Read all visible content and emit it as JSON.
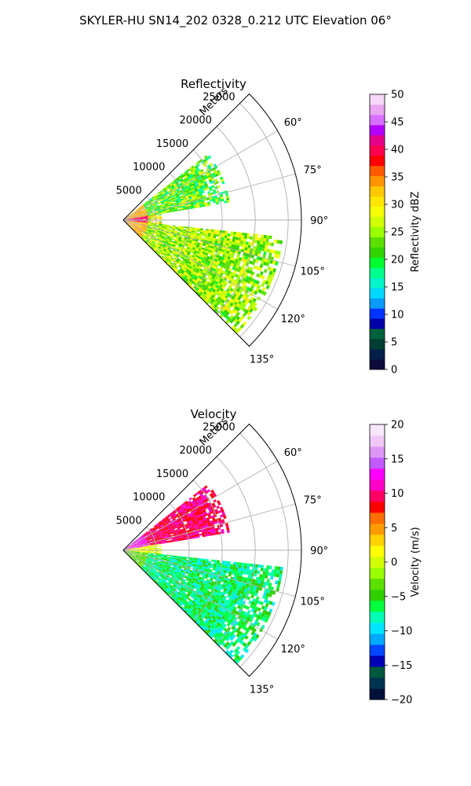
{
  "suptitle": "SKYLER-HU  SN14_202  0328_0.212 UTC Elevation 06°",
  "chart_data": [
    {
      "type": "heatmap",
      "subtype": "polar-sector",
      "title": "Reflectivity",
      "radial_axis_label": "Meters",
      "radial_ticks": [
        5000,
        10000,
        15000,
        20000,
        25000
      ],
      "radial_tick_labels": [
        "5000",
        "10000",
        "15000",
        "20000",
        "25000"
      ],
      "radial_range": [
        0,
        27000
      ],
      "azimuth_ticks": [
        60,
        75,
        90,
        105,
        120,
        135
      ],
      "azimuth_tick_labels": [
        "60°",
        "75°",
        "90°",
        "105°",
        "120°",
        "135°"
      ],
      "azimuth_range": [
        45,
        135
      ],
      "grid": true,
      "colorbar": {
        "label": "Reflectivity dBZ",
        "min": 0,
        "max": 50,
        "ticks": [
          0,
          5,
          10,
          15,
          20,
          25,
          30,
          35,
          40,
          45,
          50
        ],
        "tick_labels": [
          "0",
          "5",
          "10",
          "15",
          "20",
          "25",
          "30",
          "35",
          "40",
          "45",
          "50"
        ],
        "colormap": "pyart_NWSRef"
      },
      "echo_sectors": [
        {
          "az": [
            52,
            80
          ],
          "r": [
            0,
            16000
          ],
          "value_range": [
            10,
            35
          ]
        },
        {
          "az": [
            80,
            96
          ],
          "r": [
            0,
            5500
          ],
          "value_range": [
            15,
            42
          ]
        },
        {
          "az": [
            96,
            135
          ],
          "r": [
            0,
            24000
          ],
          "value_range": [
            15,
            35
          ]
        }
      ]
    },
    {
      "type": "heatmap",
      "subtype": "polar-sector",
      "title": "Velocity",
      "radial_axis_label": "Meters",
      "radial_ticks": [
        5000,
        10000,
        15000,
        20000,
        25000
      ],
      "radial_tick_labels": [
        "5000",
        "10000",
        "15000",
        "20000",
        "25000"
      ],
      "radial_range": [
        0,
        27000
      ],
      "azimuth_ticks": [
        60,
        75,
        90,
        105,
        120,
        135
      ],
      "azimuth_tick_labels": [
        "60°",
        "75°",
        "90°",
        "105°",
        "120°",
        "135°"
      ],
      "azimuth_range": [
        45,
        135
      ],
      "grid": true,
      "colorbar": {
        "label": "Velocity (m/s)",
        "min": -20,
        "max": 20,
        "ticks": [
          -20,
          -15,
          -10,
          -5,
          0,
          5,
          10,
          15,
          20
        ],
        "tick_labels": [
          "−20",
          "−15",
          "−10",
          "−5",
          "0",
          "5",
          "10",
          "15",
          "20"
        ],
        "colormap": "pyart_BuDRd18"
      },
      "echo_sectors": [
        {
          "az": [
            52,
            80
          ],
          "r": [
            0,
            16000
          ],
          "value_range": [
            5,
            14
          ]
        },
        {
          "az": [
            80,
            96
          ],
          "r": [
            0,
            5500
          ],
          "value_range": [
            -2,
            3
          ]
        },
        {
          "az": [
            96,
            135
          ],
          "r": [
            0,
            24000
          ],
          "value_range": [
            -12,
            -2
          ]
        }
      ]
    }
  ],
  "colormaps": {
    "reflectivity": [
      "#0c0b3b",
      "#02204a",
      "#003d33",
      "#00633c",
      "#0000a8",
      "#0033ff",
      "#0a9bff",
      "#00d9ff",
      "#00f5c9",
      "#00ff8c",
      "#00ff2e",
      "#32d400",
      "#5be000",
      "#9aff00",
      "#cfff00",
      "#f5ff00",
      "#ffe600",
      "#ffc800",
      "#ff9600",
      "#ff5a00",
      "#ff0000",
      "#ff0050",
      "#e6008c",
      "#b400ff",
      "#d870ff",
      "#eaa6f0",
      "#f6d6f9"
    ],
    "velocity": [
      "#02113b",
      "#00344f",
      "#00593f",
      "#0000b4",
      "#0047ff",
      "#00aaff",
      "#00e6ff",
      "#00ffb4",
      "#00ff3c",
      "#2fd000",
      "#5be000",
      "#9aff00",
      "#d2ff00",
      "#ffff00",
      "#ffd200",
      "#ff9b00",
      "#ff6e00",
      "#ff0000",
      "#ff0064",
      "#ff00c8",
      "#ff00ff",
      "#c35aff",
      "#dc96f5",
      "#f0c8f6",
      "#f8e6fa"
    ]
  }
}
